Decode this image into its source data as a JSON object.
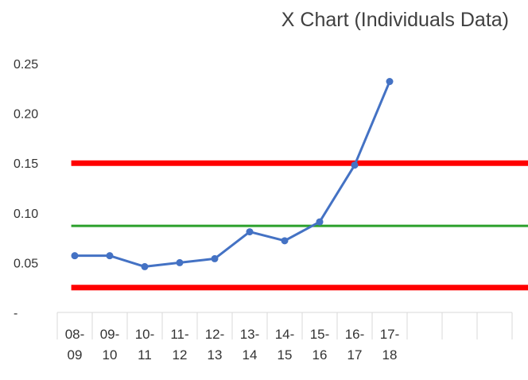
{
  "chart_data": {
    "type": "line",
    "title": "X Chart (Individuals Data)",
    "categories": [
      "08-\n09",
      "09-\n10",
      "10-\n11",
      "11-\n12",
      "12-\n13",
      "13-\n14",
      "14-\n15",
      "15-\n16",
      "16-\n17",
      "17-\n18",
      null,
      null,
      null
    ],
    "series": [
      {
        "color": "#4472c4",
        "values": [
          0.057,
          0.057,
          0.046,
          0.05,
          0.054,
          0.081,
          0.072,
          0.091,
          0.148,
          0.232,
          null,
          null,
          null
        ]
      }
    ],
    "reference_lines": [
      {
        "value": 0.15,
        "color": "#ff0000"
      },
      {
        "value": 0.087,
        "color": "#2ca02c"
      },
      {
        "value": 0.025,
        "color": "#ff0000"
      }
    ],
    "ylim": [
      0,
      0.25
    ],
    "yticks": [
      {
        "value": 0,
        "label": "-"
      },
      {
        "value": 0.05,
        "label": "0.05"
      },
      {
        "value": 0.1,
        "label": "0.10"
      },
      {
        "value": 0.15,
        "label": "0.15"
      },
      {
        "value": 0.2,
        "label": "0.20"
      },
      {
        "value": 0.25,
        "label": "0.25"
      }
    ],
    "grid": false
  }
}
